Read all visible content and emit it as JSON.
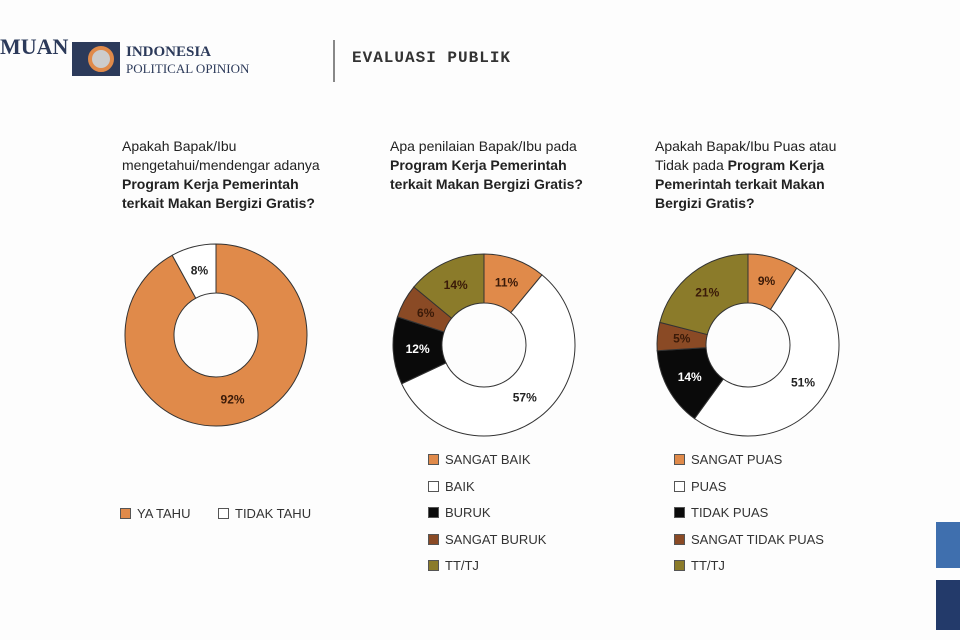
{
  "header": {
    "brand_left": "MUAN",
    "brand_name": "INDONESIA",
    "brand_sub": "POLITICAL OPINION",
    "title": "EVALUASI PUBLIK"
  },
  "colors": {
    "orange": "#E08A4A",
    "white": "#FFFFFF",
    "black": "#0A0A0A",
    "brown": "#8A4A25",
    "olive": "#8B7B2A"
  },
  "chart_data": [
    {
      "type": "pie",
      "title_plain": "Apakah Bapak/Ibu mengetahui/mendengar adanya ",
      "title_bold": "Program Kerja Pemerintah terkait Makan Bergizi Gratis?",
      "slices": [
        {
          "name": "YA TAHU",
          "value": 92,
          "label": "92%",
          "color": "#E08A4A"
        },
        {
          "name": "TIDAK TAHU",
          "value": 8,
          "label": "8%",
          "color": "#FFFFFF"
        }
      ]
    },
    {
      "type": "pie",
      "title_plain": "Apa penilaian Bapak/Ibu pada ",
      "title_bold": "Program Kerja Pemerintah terkait Makan Bergizi Gratis?",
      "slices": [
        {
          "name": "SANGAT BAIK",
          "value": 11,
          "label": "11%",
          "color": "#E08A4A"
        },
        {
          "name": "BAIK",
          "value": 57,
          "label": "57%",
          "color": "#FFFFFF"
        },
        {
          "name": "BURUK",
          "value": 12,
          "label": "12%",
          "color": "#0A0A0A"
        },
        {
          "name": "SANGAT BURUK",
          "value": 6,
          "label": "6%",
          "color": "#8A4A25"
        },
        {
          "name": "TT/TJ",
          "value": 14,
          "label": "14%",
          "color": "#8B7B2A"
        }
      ]
    },
    {
      "type": "pie",
      "title_plain": "Apakah Bapak/Ibu Puas atau Tidak pada ",
      "title_bold": "Program Kerja Pemerintah terkait Makan Bergizi Gratis?",
      "slices": [
        {
          "name": "SANGAT PUAS",
          "value": 9,
          "label": "9%",
          "color": "#E08A4A"
        },
        {
          "name": "PUAS",
          "value": 51,
          "label": "51%",
          "color": "#FFFFFF"
        },
        {
          "name": "TIDAK PUAS",
          "value": 14,
          "label": "14%",
          "color": "#0A0A0A"
        },
        {
          "name": "SANGAT TIDAK PUAS",
          "value": 5,
          "label": "5%",
          "color": "#8A4A25"
        },
        {
          "name": "TT/TJ",
          "value": 21,
          "label": "21%",
          "color": "#8B7B2A"
        }
      ]
    }
  ]
}
